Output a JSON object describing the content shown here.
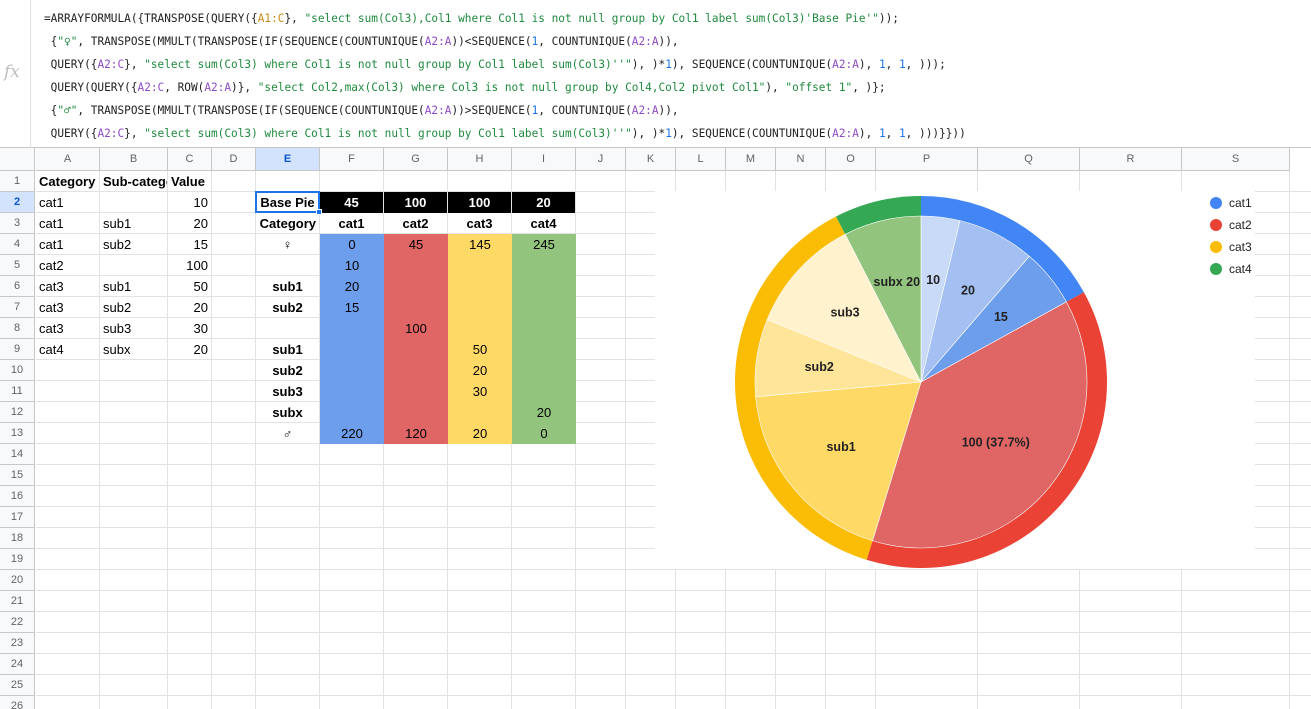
{
  "formula_bar": {
    "fx_label": "fx",
    "lines": [
      [
        [
          "t",
          "=ARRAYFORMULA({TRANSPOSE(QUERY({"
        ],
        [
          "r1",
          "A1:C"
        ],
        [
          "t",
          "}, "
        ],
        [
          "s",
          "\"select sum(Col3),Col1 where Col1 is not null group by Col1 label sum(Col3)'Base Pie'\""
        ],
        [
          "t",
          "));"
        ]
      ],
      [
        [
          "t",
          " {"
        ],
        [
          "s",
          "\"♀\""
        ],
        [
          "t",
          ", TRANSPOSE(MMULT(TRANSPOSE(IF(SEQUENCE(COUNTUNIQUE("
        ],
        [
          "r2",
          "A2:A"
        ],
        [
          "t",
          "))<SEQUENCE("
        ],
        [
          "n",
          "1"
        ],
        [
          "t",
          ", COUNTUNIQUE("
        ],
        [
          "r2",
          "A2:A"
        ],
        [
          "t",
          ")),"
        ]
      ],
      [
        [
          "t",
          " QUERY({"
        ],
        [
          "r2",
          "A2:C"
        ],
        [
          "t",
          "}, "
        ],
        [
          "s",
          "\"select sum(Col3) where Col1 is not null group by Col1 label sum(Col3)''\""
        ],
        [
          "t",
          "), )*"
        ],
        [
          "n",
          "1"
        ],
        [
          "t",
          "), SEQUENCE(COUNTUNIQUE("
        ],
        [
          "r2",
          "A2:A"
        ],
        [
          "t",
          "), "
        ],
        [
          "n",
          "1"
        ],
        [
          "t",
          ", "
        ],
        [
          "n",
          "1"
        ],
        [
          "t",
          ", )));"
        ]
      ],
      [
        [
          "t",
          " QUERY(QUERY({"
        ],
        [
          "r2",
          "A2:C"
        ],
        [
          "t",
          ", ROW("
        ],
        [
          "r2",
          "A2:A"
        ],
        [
          "t",
          ")}, "
        ],
        [
          "s",
          "\"select Col2,max(Col3) where Col3 is not null group by Col4,Col2 pivot Col1\""
        ],
        [
          "t",
          "), "
        ],
        [
          "s",
          "\"offset 1\""
        ],
        [
          "t",
          ", )};"
        ]
      ],
      [
        [
          "t",
          " {"
        ],
        [
          "s",
          "\"♂\""
        ],
        [
          "t",
          ", TRANSPOSE(MMULT(TRANSPOSE(IF(SEQUENCE(COUNTUNIQUE("
        ],
        [
          "r2",
          "A2:A"
        ],
        [
          "t",
          "))>SEQUENCE("
        ],
        [
          "n",
          "1"
        ],
        [
          "t",
          ", COUNTUNIQUE("
        ],
        [
          "r2",
          "A2:A"
        ],
        [
          "t",
          ")),"
        ]
      ],
      [
        [
          "t",
          " QUERY({"
        ],
        [
          "r2",
          "A2:C"
        ],
        [
          "t",
          "}, "
        ],
        [
          "s",
          "\"select sum(Col3) where Col1 is not null group by Col1 label sum(Col3)''\""
        ],
        [
          "t",
          "), )*"
        ],
        [
          "n",
          "1"
        ],
        [
          "t",
          "), SEQUENCE(COUNTUNIQUE("
        ],
        [
          "r2",
          "A2:A"
        ],
        [
          "t",
          "), "
        ],
        [
          "n",
          "1"
        ],
        [
          "t",
          ", "
        ],
        [
          "n",
          "1"
        ],
        [
          "t",
          ", )))}}))"
        ]
      ]
    ]
  },
  "columns": [
    "A",
    "B",
    "C",
    "D",
    "E",
    "F",
    "G",
    "H",
    "I",
    "J",
    "K",
    "L",
    "M",
    "N",
    "O",
    "P",
    "Q",
    "R",
    "S"
  ],
  "selected_column": "E",
  "rows": [
    "1",
    "2",
    "3",
    "4",
    "5",
    "6",
    "7",
    "8",
    "9",
    "10",
    "11",
    "12",
    "13",
    "14",
    "15",
    "16",
    "17",
    "18",
    "19",
    "20",
    "21",
    "22",
    "23",
    "24",
    "25",
    "26"
  ],
  "selected_row": "2",
  "source_table": {
    "headers": [
      "Category",
      "Sub-category",
      "Value"
    ],
    "rows": [
      [
        "cat1",
        "",
        "10"
      ],
      [
        "cat1",
        "sub1",
        "20"
      ],
      [
        "cat1",
        "sub2",
        "15"
      ],
      [
        "cat2",
        "",
        "100"
      ],
      [
        "cat3",
        "sub1",
        "50"
      ],
      [
        "cat3",
        "sub2",
        "20"
      ],
      [
        "cat3",
        "sub3",
        "30"
      ],
      [
        "cat4",
        "subx",
        "20"
      ]
    ]
  },
  "result_table": {
    "corner_label": "Base Pie",
    "base_values": [
      "45",
      "100",
      "100",
      "20"
    ],
    "category_label": "Category",
    "categories": [
      "cat1",
      "cat2",
      "cat3",
      "cat4"
    ],
    "rows": [
      {
        "label": "♀",
        "values": [
          "0",
          "45",
          "145",
          "245"
        ]
      },
      {
        "label": "",
        "values": [
          "10",
          "",
          "",
          ""
        ]
      },
      {
        "label": "sub1",
        "values": [
          "20",
          "",
          "",
          ""
        ]
      },
      {
        "label": "sub2",
        "values": [
          "15",
          "",
          "",
          ""
        ]
      },
      {
        "label": "",
        "values": [
          "",
          "100",
          "",
          ""
        ]
      },
      {
        "label": "sub1",
        "values": [
          "",
          "",
          "50",
          ""
        ]
      },
      {
        "label": "sub2",
        "values": [
          "",
          "",
          "20",
          ""
        ]
      },
      {
        "label": "sub3",
        "values": [
          "",
          "",
          "30",
          ""
        ]
      },
      {
        "label": "subx",
        "values": [
          "",
          "",
          "",
          "20"
        ]
      },
      {
        "label": "♂",
        "values": [
          "220",
          "120",
          "20",
          "0"
        ]
      }
    ]
  },
  "colors": {
    "cat1": "#4285f4",
    "cat2": "#ea4335",
    "cat3": "#fbbc04",
    "cat4": "#34a853",
    "cell_cat1": "#6d9eeb",
    "cell_cat2": "#e06666",
    "cell_cat3": "#ffd966",
    "cell_cat4": "#93c47d",
    "selection": "#1a73e8"
  },
  "chart_data": {
    "type": "pie",
    "title": "",
    "legend_position": "right",
    "outer_ring": [
      {
        "name": "cat1",
        "value": 45
      },
      {
        "name": "cat2",
        "value": 100
      },
      {
        "name": "cat3",
        "value": 100
      },
      {
        "name": "cat4",
        "value": 20
      }
    ],
    "slices": [
      {
        "category": "cat1",
        "label": "10",
        "value": 10,
        "fill": "#c9d9f8"
      },
      {
        "category": "cat1",
        "label": "20",
        "value": 20,
        "fill": "#a4c0f2"
      },
      {
        "category": "cat1",
        "label": "15",
        "value": 15,
        "fill": "#6d9eeb"
      },
      {
        "category": "cat2",
        "label": "100 (37.7%)",
        "value": 100,
        "fill": "#e06666"
      },
      {
        "category": "cat3",
        "label": "sub1",
        "value": 50,
        "fill": "#ffd966"
      },
      {
        "category": "cat3",
        "label": "sub2",
        "value": 20,
        "fill": "#ffe599"
      },
      {
        "category": "cat3",
        "label": "sub3",
        "value": 30,
        "fill": "#fff2cc"
      },
      {
        "category": "cat4",
        "label": "subx 20",
        "value": 20,
        "fill": "#93c47d"
      }
    ],
    "legend": [
      "cat1",
      "cat2",
      "cat3",
      "cat4"
    ]
  }
}
